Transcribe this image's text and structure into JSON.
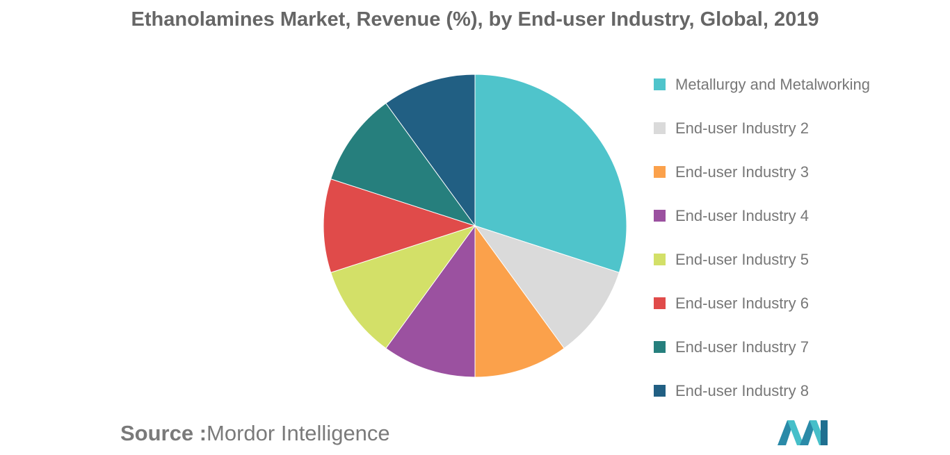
{
  "chart_data": {
    "type": "pie",
    "title": "Ethanolamines Market, Revenue (%), by End-user Industry, Global, 2019",
    "categories": [
      "Metallurgy and Metalworking",
      "End-user Industry 2",
      "End-user Industry 3",
      "End-user Industry 4",
      "End-user Industry 5",
      "End-user Industry 6",
      "End-user Industry 7",
      "End-user Industry 8"
    ],
    "values": [
      30,
      10,
      10,
      10,
      10,
      10,
      10,
      10
    ],
    "colors": [
      "#4fc4cb",
      "#dadada",
      "#fba14b",
      "#9b51a0",
      "#d3e068",
      "#e04b4a",
      "#267f7d",
      "#215f83"
    ],
    "legend_position": "right"
  },
  "source": {
    "label": "Source :",
    "text": "Mordor Intelligence"
  }
}
